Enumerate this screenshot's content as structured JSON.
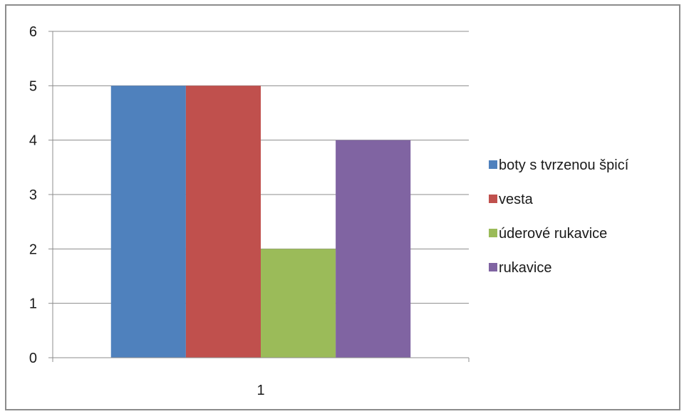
{
  "chart_data": {
    "type": "bar",
    "categories": [
      "1"
    ],
    "series": [
      {
        "name": "boty s tvrzenou špicí",
        "values": [
          5
        ],
        "color": "#4f81bd"
      },
      {
        "name": "vesta",
        "values": [
          5
        ],
        "color": "#c0504d"
      },
      {
        "name": "úderové rukavice",
        "values": [
          2
        ],
        "color": "#9bbb59"
      },
      {
        "name": "rukavice",
        "values": [
          4
        ],
        "color": "#8064a2"
      }
    ],
    "ylim": [
      0,
      6
    ],
    "yticks": [
      0,
      1,
      2,
      3,
      4,
      5,
      6
    ],
    "grid": true,
    "legend": "right"
  }
}
